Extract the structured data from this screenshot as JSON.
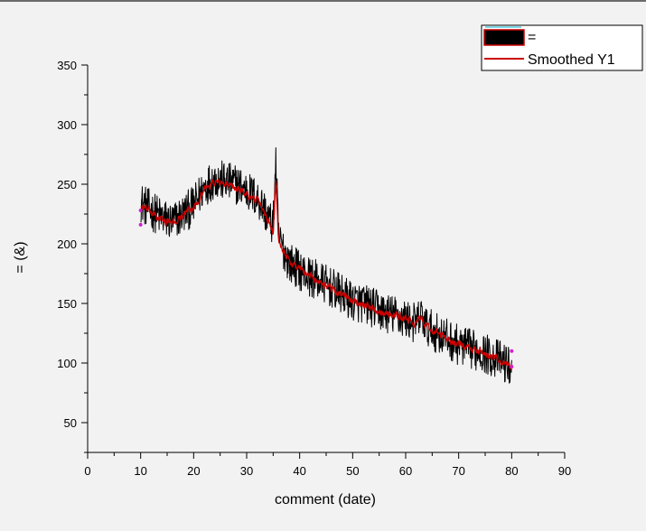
{
  "chart_data": {
    "type": "line",
    "title": "",
    "xlabel": "comment (date)",
    "ylabel": "= (&)",
    "xlim": [
      0,
      90
    ],
    "ylim": [
      25,
      350
    ],
    "x_ticks": [
      0,
      10,
      20,
      30,
      40,
      50,
      60,
      70,
      80,
      90
    ],
    "y_ticks": [
      50,
      100,
      150,
      200,
      250,
      300,
      350
    ],
    "grid": false,
    "legend": {
      "position": "top-right",
      "entries": [
        {
          "label": "=",
          "color": "#000000"
        },
        {
          "label": "Smoothed Y1",
          "color": "#cc0000"
        }
      ]
    },
    "series": [
      {
        "color": "#000000",
        "noise": 17,
        "x": [
          10,
          12,
          14,
          16,
          18,
          20,
          22,
          24,
          26,
          28,
          30,
          32,
          33,
          34,
          35,
          35.5,
          36,
          37,
          38,
          40,
          42,
          44,
          46,
          48,
          50,
          52,
          54,
          56,
          58,
          60,
          62,
          63,
          64,
          66,
          68,
          70,
          72,
          74,
          76,
          78,
          80
        ],
        "y": [
          235,
          228,
          222,
          218,
          225,
          232,
          248,
          255,
          252,
          250,
          245,
          238,
          232,
          222,
          215,
          270,
          205,
          195,
          185,
          178,
          172,
          168,
          163,
          157,
          152,
          150,
          146,
          142,
          140,
          137,
          133,
          140,
          130,
          125,
          120,
          115,
          112,
          110,
          106,
          102,
          96
        ]
      },
      {
        "name": "Smoothed Y1",
        "color": "#cc0000",
        "noise": 6,
        "x": [
          10,
          12,
          14,
          16,
          18,
          20,
          22,
          24,
          26,
          28,
          30,
          32,
          33,
          34,
          35,
          35.5,
          36,
          37,
          38,
          40,
          42,
          44,
          46,
          48,
          50,
          52,
          54,
          56,
          58,
          60,
          62,
          63,
          64,
          66,
          68,
          70,
          72,
          74,
          76,
          78,
          80
        ],
        "y": [
          232,
          226,
          220,
          217,
          224,
          230,
          246,
          252,
          250,
          247,
          242,
          236,
          230,
          220,
          212,
          255,
          205,
          195,
          186,
          179,
          173,
          168,
          163,
          157,
          152,
          150,
          146,
          142,
          140,
          137,
          133,
          138,
          130,
          125,
          120,
          115,
          112,
          110,
          106,
          102,
          97
        ]
      }
    ]
  }
}
